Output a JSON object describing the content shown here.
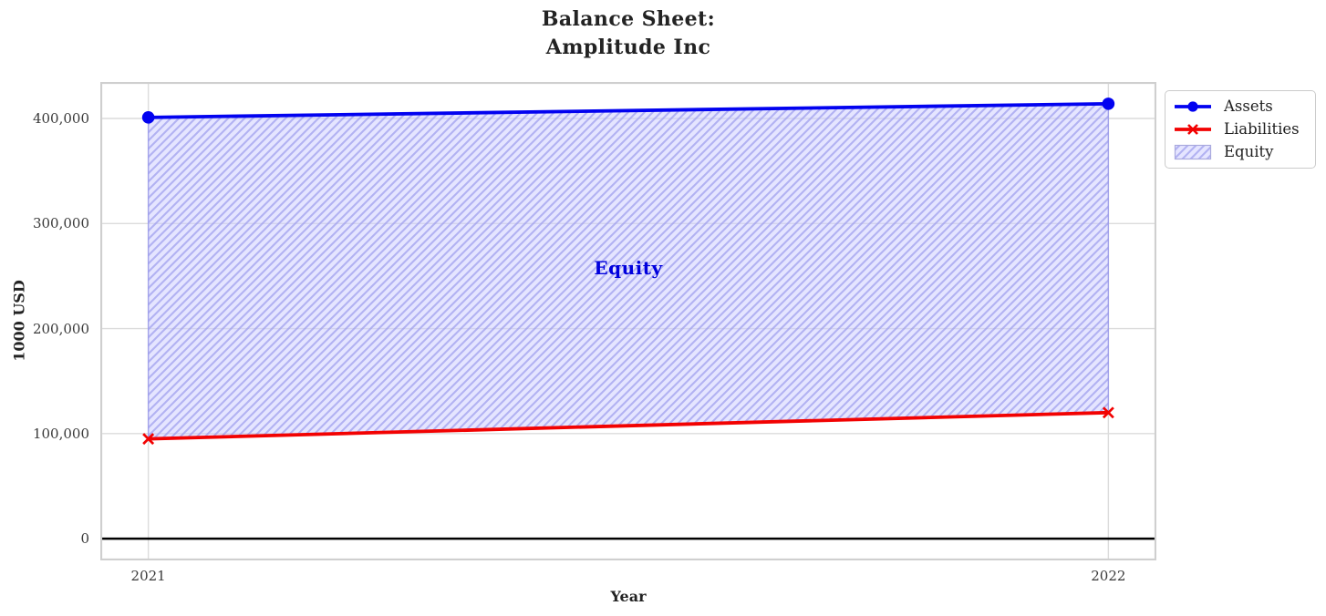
{
  "title": {
    "line1": "Balance Sheet:",
    "line2": "Amplitude Inc"
  },
  "axes": {
    "xlabel": "Year",
    "ylabel": "1000 USD",
    "x_ticks": [
      "2021",
      "2022"
    ],
    "y_ticks": [
      "0",
      "100,000",
      "200,000",
      "300,000",
      "400,000"
    ]
  },
  "legend": {
    "items": [
      {
        "label": "Assets",
        "color": "#0202f0",
        "marker": "circle"
      },
      {
        "label": "Liabilities",
        "color": "#f20202",
        "marker": "x"
      },
      {
        "label": "Equity",
        "swatch": "hatched-patch",
        "fill": "#ccccff",
        "hatch_color": "#9898e0"
      }
    ]
  },
  "chart_data": {
    "type": "line",
    "title": "Balance Sheet:\nAmplitude Inc",
    "xlabel": "Year",
    "ylabel": "1000 USD",
    "x": [
      2021,
      2022
    ],
    "series": [
      {
        "name": "Assets",
        "values": [
          401000,
          414000
        ],
        "color": "#0202f0",
        "marker": "circle"
      },
      {
        "name": "Liabilities",
        "values": [
          95000,
          120000
        ],
        "color": "#f20202",
        "marker": "x"
      }
    ],
    "area": {
      "name": "Equity",
      "between": [
        "Liabilities",
        "Assets"
      ],
      "values_implied": [
        306000,
        294000
      ],
      "face_color": "rgba(204,204,255,0.5)",
      "hatch": "//",
      "hatch_color": "rgba(150,150,235,0.65)"
    },
    "annotations": [
      {
        "text": "Equity",
        "x": 2021.5,
        "y": 257500,
        "color": "#0000dd"
      }
    ],
    "baseline": {
      "y": 0,
      "color": "#000000"
    },
    "xlim": [
      2020.95,
      2022.05
    ],
    "ylim": [
      -20700,
      434700
    ],
    "y_tick_values": [
      0,
      100000,
      200000,
      300000,
      400000
    ],
    "grid": true,
    "legend_position": "outside upper right"
  }
}
